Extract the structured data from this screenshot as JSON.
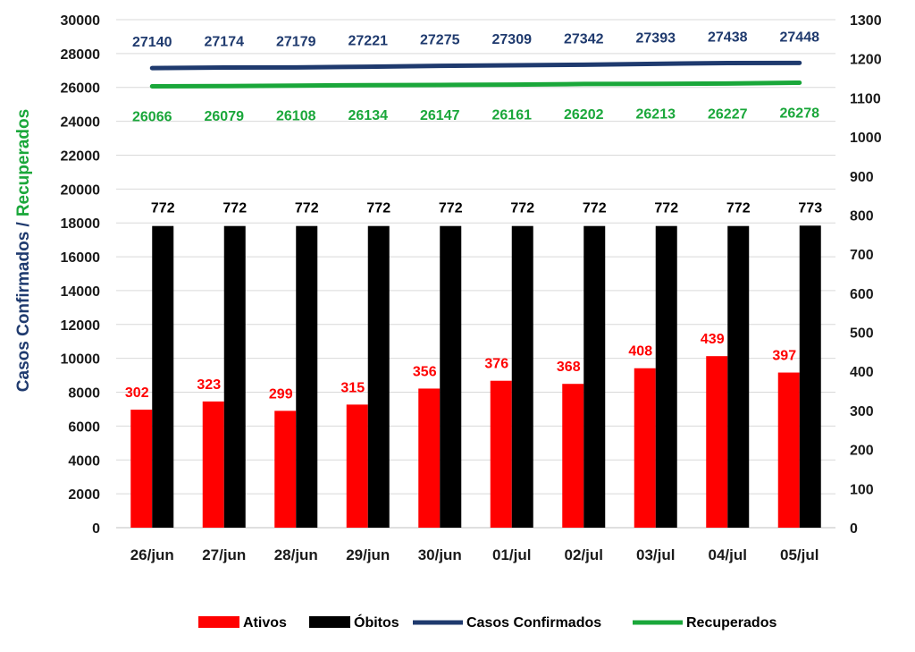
{
  "colors": {
    "ativos": "#ff0000",
    "obitos": "#000000",
    "confirmados": "#1f3a6e",
    "recuperados": "#1aa73a",
    "grid": "#d9d9d9",
    "axis_text": "#1a1a1a"
  },
  "chart_data": {
    "type": "bar",
    "title": "",
    "categories": [
      "26/jun",
      "27/jun",
      "28/jun",
      "29/jun",
      "30/jun",
      "01/jul",
      "02/jul",
      "03/jul",
      "04/jul",
      "05/jul"
    ],
    "left_axis": {
      "label_part1": "Casos Confirmados /",
      "label_part2": "Recuperados",
      "ylim": [
        0,
        30000
      ],
      "ticks": [
        0,
        2000,
        4000,
        6000,
        8000,
        10000,
        12000,
        14000,
        16000,
        18000,
        20000,
        22000,
        24000,
        26000,
        28000,
        30000
      ]
    },
    "right_axis": {
      "ylim": [
        0,
        1300
      ],
      "ticks": [
        0,
        100,
        200,
        300,
        400,
        500,
        600,
        700,
        800,
        900,
        1000,
        1100,
        1200,
        1300
      ]
    },
    "series": [
      {
        "name": "Ativos",
        "kind": "bar",
        "axis": "right",
        "color": "#ff0000",
        "values": [
          302,
          323,
          299,
          315,
          356,
          376,
          368,
          408,
          439,
          397
        ]
      },
      {
        "name": "Óbitos",
        "kind": "bar",
        "axis": "right",
        "color": "#000000",
        "values": [
          772,
          772,
          772,
          772,
          772,
          772,
          772,
          772,
          772,
          773
        ]
      },
      {
        "name": "Casos Confirmados",
        "kind": "line",
        "axis": "left",
        "color": "#1f3a6e",
        "values": [
          27140,
          27174,
          27179,
          27221,
          27275,
          27309,
          27342,
          27393,
          27438,
          27448
        ]
      },
      {
        "name": "Recuperados",
        "kind": "line",
        "axis": "left",
        "color": "#1aa73a",
        "values": [
          26066,
          26079,
          26108,
          26134,
          26147,
          26161,
          26202,
          26213,
          26227,
          26278
        ]
      }
    ],
    "grid": true,
    "legend_position": "bottom"
  }
}
